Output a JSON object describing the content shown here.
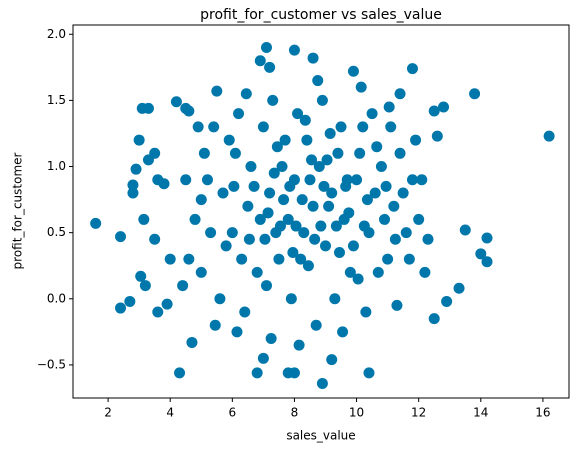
{
  "chart_data": {
    "type": "scatter",
    "title": "profit_for_customer vs sales_value",
    "x_label": "sales_value",
    "y_label": "profit_for_customer",
    "color": "#0077aa",
    "xlim": [
      0.87,
      16.84
    ],
    "ylim": [
      -0.75,
      2.07
    ],
    "xticks": [
      2,
      4,
      6,
      8,
      10,
      12,
      14,
      16
    ],
    "yticks": [
      {
        "value": -0.5,
        "label": "−0.5"
      },
      {
        "value": 0,
        "label": "0.0"
      },
      {
        "value": 0.5,
        "label": "0.5"
      },
      {
        "value": 1,
        "label": "1.0"
      },
      {
        "value": 1.5,
        "label": "1.5"
      },
      {
        "value": 2,
        "label": "2.0"
      }
    ],
    "x": [
      1.6,
      2.4,
      2.4,
      2.7,
      2.8,
      2.8,
      2.9,
      3.0,
      3.05,
      3.1,
      3.15,
      3.3,
      3.3,
      3.5,
      3.6,
      3.5,
      4.3,
      4.2,
      4.5,
      4.6,
      13.8,
      16.2,
      14.2,
      14.2,
      14.0,
      13.5,
      13.3,
      12.9,
      12.5,
      12.5,
      12.8,
      12.6,
      11.8,
      10.4,
      8.9,
      7.0,
      6.8,
      7.8,
      8.0,
      9.2,
      7.1,
      8.0,
      8.6,
      6.9,
      7.2,
      9.9,
      4.7,
      3.9,
      4.0,
      3.2,
      3.6,
      3.8,
      5.5,
      11.4,
      5.2,
      5.8,
      6.1,
      6.5,
      6.8,
      7.0,
      7.2,
      7.4,
      7.6,
      7.8,
      8.0,
      8.2,
      8.4,
      8.6,
      8.8,
      9.0,
      9.2,
      9.4,
      9.6,
      9.8,
      10.0,
      10.2,
      10.4,
      10.6,
      10.8,
      11.0,
      11.2,
      11.4,
      11.6,
      11.8,
      12.0,
      12.2,
      4.8,
      5.0,
      5.4,
      5.6,
      6.0,
      6.2,
      6.4,
      6.6,
      6.9,
      7.1,
      7.3,
      7.5,
      7.7,
      7.9,
      8.1,
      8.3,
      8.5,
      8.7,
      8.9,
      9.1,
      9.3,
      9.5,
      9.7,
      9.9,
      10.1,
      10.3,
      10.5,
      10.7,
      10.9,
      11.1,
      11.3,
      11.5,
      11.7,
      11.9,
      12.1,
      12.3,
      4.5,
      4.6,
      5.1,
      5.3,
      5.7,
      5.9,
      6.3,
      6.7,
      7.05,
      7.35,
      7.65,
      7.95,
      8.25,
      8.55,
      8.85,
      9.15,
      9.45,
      9.75,
      10.05,
      10.35,
      10.65,
      10.95,
      11.25,
      4.4,
      4.9,
      5.45,
      6.15,
      6.45,
      7.25,
      8.15,
      8.75,
      9.55,
      10.15,
      11.05,
      5.0,
      6.05,
      7.15,
      8.05,
      8.45,
      9.05,
      9.65,
      10.25,
      6.55,
      7.45,
      8.35,
      9.35,
      7.85,
      8.65,
      7.55,
      8.95
    ],
    "y": [
      0.57,
      0.47,
      -0.07,
      -0.02,
      0.86,
      0.8,
      0.98,
      1.2,
      0.17,
      1.44,
      0.6,
      1.44,
      1.05,
      1.1,
      -0.1,
      0.45,
      -0.56,
      1.49,
      1.44,
      1.42,
      1.55,
      1.23,
      0.46,
      0.28,
      0.34,
      0.52,
      0.08,
      -0.02,
      -0.15,
      1.42,
      1.45,
      1.23,
      1.74,
      -0.56,
      -0.64,
      -0.45,
      -0.56,
      -0.56,
      -0.56,
      -0.46,
      1.9,
      1.88,
      1.82,
      1.8,
      1.75,
      1.72,
      -0.33,
      -0.04,
      0.3,
      0.1,
      0.9,
      0.87,
      1.57,
      1.55,
      0.9,
      0.4,
      1.1,
      0.7,
      0.2,
      1.3,
      0.8,
      0.5,
      1.0,
      0.6,
      0.9,
      0.3,
      1.2,
      0.7,
      1.0,
      0.4,
      0.8,
      1.1,
      0.6,
      0.2,
      0.9,
      1.3,
      0.5,
      0.8,
      1.0,
      0.3,
      0.7,
      1.1,
      0.5,
      0.9,
      0.6,
      0.2,
      0.6,
      0.2,
      1.3,
      0.0,
      0.5,
      1.4,
      -0.1,
      1.0,
      0.6,
      0.1,
      1.5,
      0.3,
      1.2,
      0.0,
      1.4,
      0.5,
      0.9,
      -0.2,
      1.5,
      0.7,
      0.0,
      1.3,
      0.9,
      0.4,
      1.1,
      -0.1,
      1.4,
      0.2,
      0.6,
      1.3,
      -0.05,
      0.8,
      0.3,
      1.2,
      0.9,
      0.45,
      0.9,
      0.3,
      1.1,
      0.5,
      0.8,
      1.2,
      0.3,
      0.85,
      0.45,
      0.95,
      0.75,
      0.35,
      0.75,
      1.05,
      0.55,
      1.25,
      0.35,
      0.65,
      0.15,
      0.75,
      1.15,
      0.85,
      0.45,
      0.1,
      1.3,
      -0.2,
      -0.25,
      1.55,
      -0.3,
      -0.35,
      1.65,
      -0.25,
      1.6,
      1.45,
      0.75,
      0.85,
      0.65,
      0.55,
      0.25,
      1.05,
      0.85,
      0.55,
      0.45,
      1.15,
      1.35,
      0.55,
      0.85,
      0.45,
      0.55,
      0.85
    ]
  }
}
